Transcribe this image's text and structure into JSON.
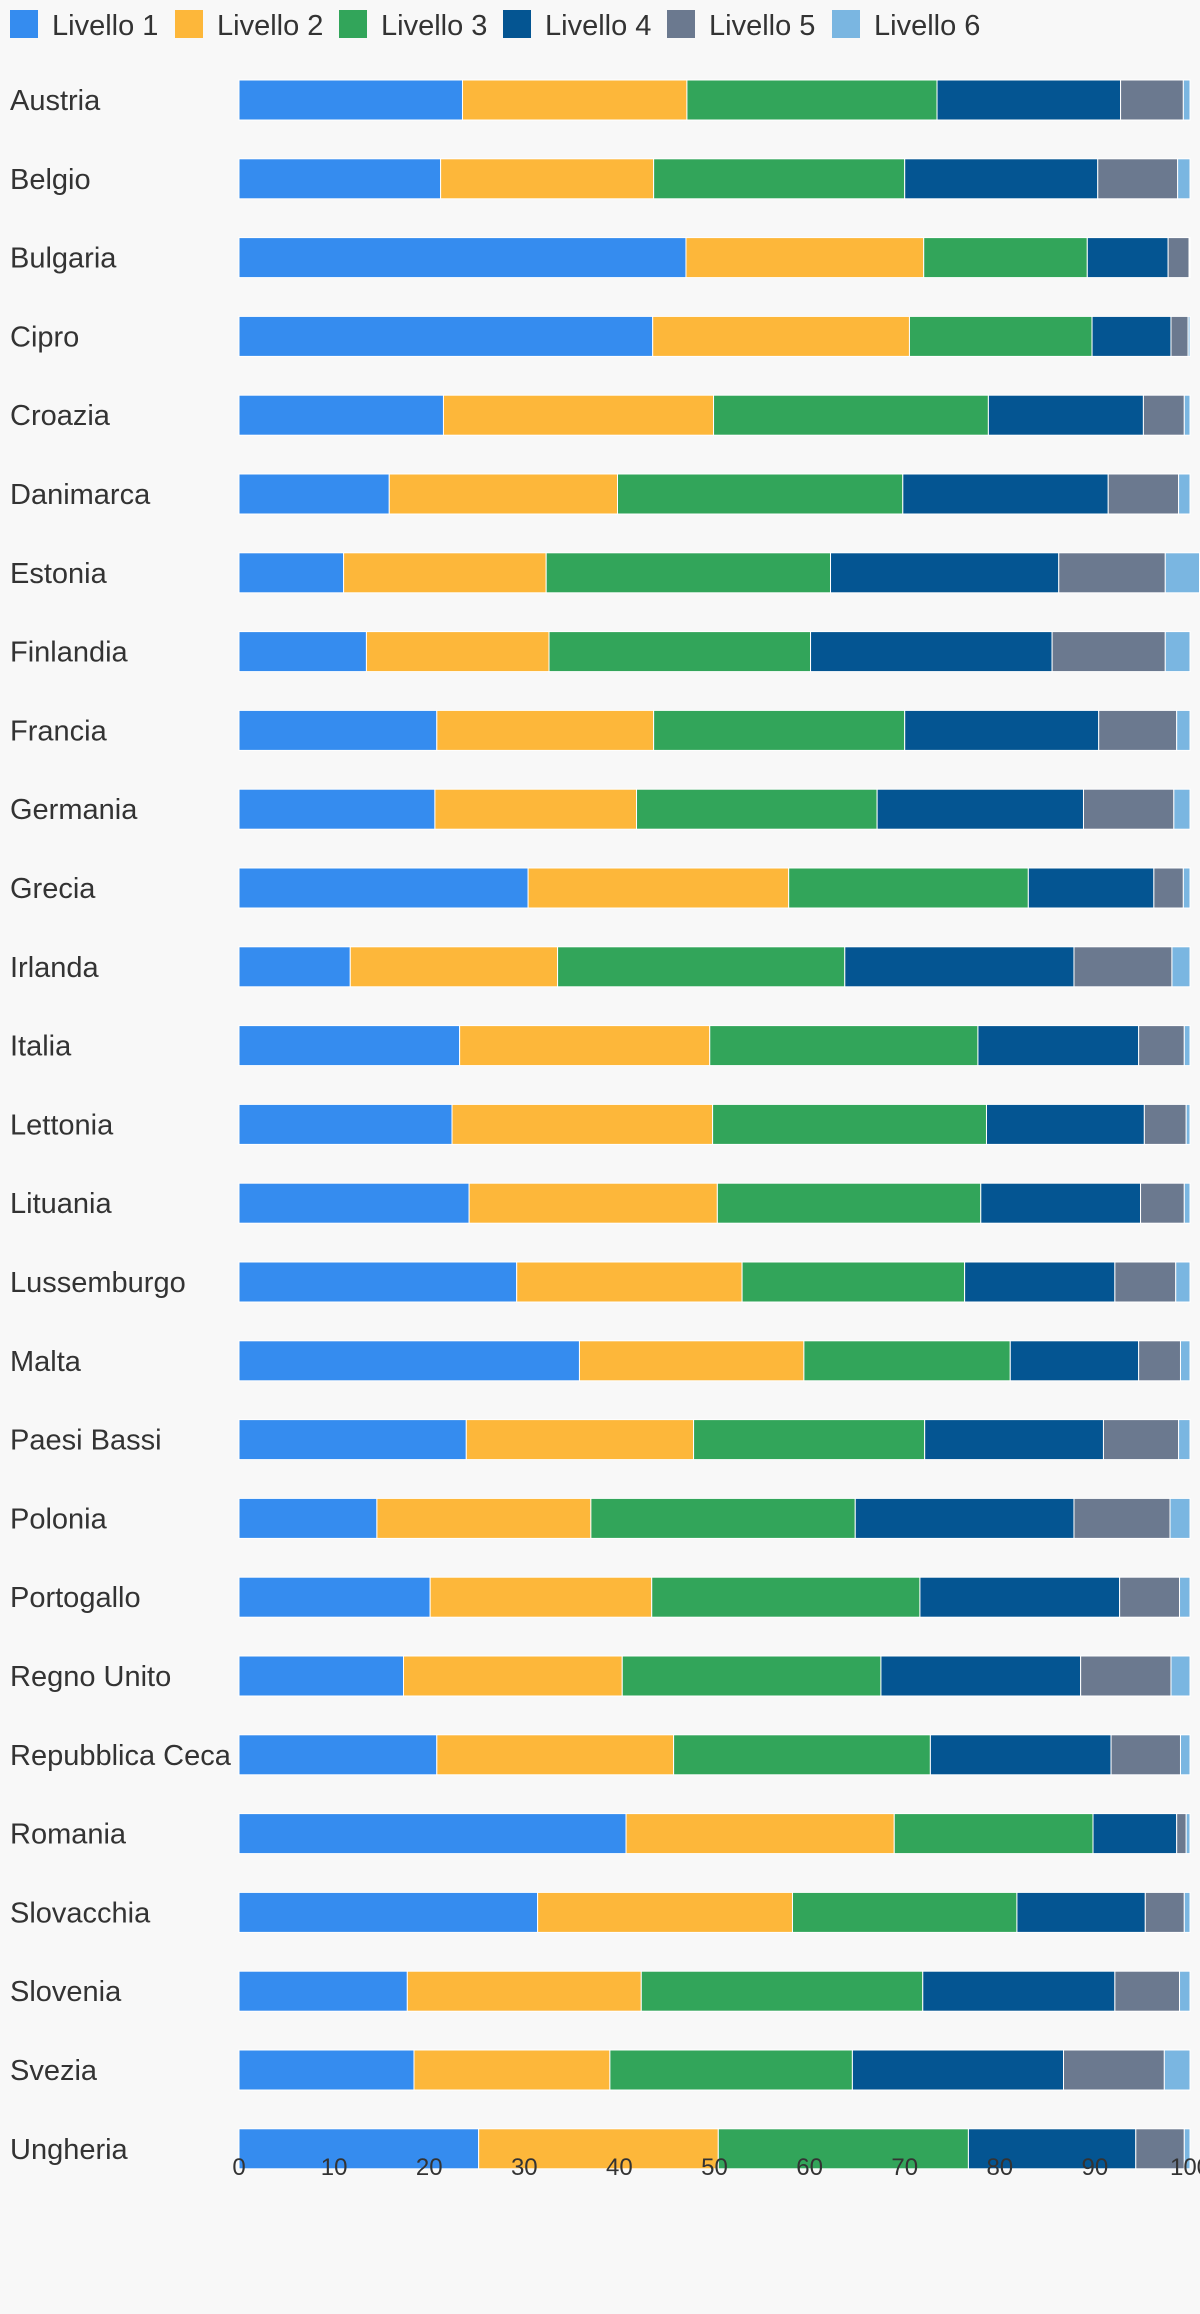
{
  "chart_data": {
    "type": "bar",
    "orientation": "horizontal",
    "stacked": true,
    "series": [
      {
        "name": "Livello 1",
        "color": "#358cef",
        "values": [
          23.5,
          21.2,
          47.0,
          43.5,
          21.5,
          15.8,
          11.0,
          13.4,
          20.8,
          20.6,
          30.4,
          11.7,
          23.2,
          22.4,
          24.2,
          29.2,
          35.8,
          23.9,
          14.5,
          20.1,
          17.3,
          20.8,
          40.7,
          31.4,
          17.7,
          18.4,
          25.2
        ]
      },
      {
        "name": "Livello 2",
        "color": "#fdb73a",
        "values": [
          23.6,
          22.4,
          25.0,
          27.0,
          28.4,
          24.0,
          21.3,
          19.2,
          22.8,
          21.2,
          27.4,
          21.8,
          26.3,
          27.4,
          26.1,
          23.7,
          23.6,
          23.9,
          22.5,
          23.3,
          23.0,
          24.9,
          28.2,
          26.8,
          24.6,
          20.6,
          25.2
        ]
      },
      {
        "name": "Livello 3",
        "color": "#32a55a",
        "values": [
          26.3,
          26.4,
          17.2,
          19.2,
          28.9,
          30.0,
          29.9,
          27.5,
          26.4,
          25.3,
          25.2,
          30.2,
          28.2,
          28.8,
          27.7,
          23.4,
          21.7,
          24.3,
          27.8,
          28.2,
          27.2,
          27.0,
          20.9,
          23.6,
          29.6,
          25.5,
          26.3
        ]
      },
      {
        "name": "Livello 4",
        "color": "#045592",
        "values": [
          19.3,
          20.3,
          8.5,
          8.3,
          16.3,
          21.6,
          24.0,
          25.4,
          20.4,
          21.7,
          13.2,
          24.1,
          16.9,
          16.6,
          16.8,
          15.8,
          13.5,
          18.8,
          23.0,
          21.0,
          21.0,
          19.0,
          8.8,
          13.5,
          20.2,
          22.2,
          17.6
        ]
      },
      {
        "name": "Livello 5",
        "color": "#6b798f",
        "values": [
          6.6,
          8.4,
          2.2,
          1.8,
          4.3,
          7.4,
          11.2,
          11.9,
          8.2,
          9.5,
          3.1,
          10.3,
          4.8,
          4.4,
          4.6,
          6.4,
          4.4,
          7.9,
          10.1,
          6.3,
          9.5,
          7.3,
          1.0,
          4.1,
          6.8,
          10.6,
          5.1
        ]
      },
      {
        "name": "Livello 6",
        "color": "#7ab6e1",
        "values": [
          0.7,
          1.3,
          0.1,
          0.2,
          0.6,
          1.2,
          3.6,
          2.6,
          1.4,
          1.7,
          0.7,
          1.9,
          0.6,
          0.4,
          0.6,
          1.5,
          1.0,
          1.2,
          2.1,
          1.1,
          2.0,
          1.0,
          0.4,
          0.6,
          1.1,
          2.7,
          0.6
        ]
      }
    ],
    "categories": [
      "Austria",
      "Belgio",
      "Bulgaria",
      "Cipro",
      "Croazia",
      "Danimarca",
      "Estonia",
      "Finlandia",
      "Francia",
      "Germania",
      "Grecia",
      "Irlanda",
      "Italia",
      "Lettonia",
      "Lituania",
      "Lussemburgo",
      "Malta",
      "Paesi Bassi",
      "Polonia",
      "Portogallo",
      "Regno Unito",
      "Repubblica Ceca",
      "Romania",
      "Slovacchia",
      "Slovenia",
      "Svezia",
      "Ungheria"
    ],
    "xlim": [
      0,
      100
    ],
    "xticks": [
      0,
      10,
      20,
      30,
      40,
      50,
      60,
      70,
      80,
      90,
      100
    ],
    "legend_position": "top-left",
    "grid": false
  }
}
